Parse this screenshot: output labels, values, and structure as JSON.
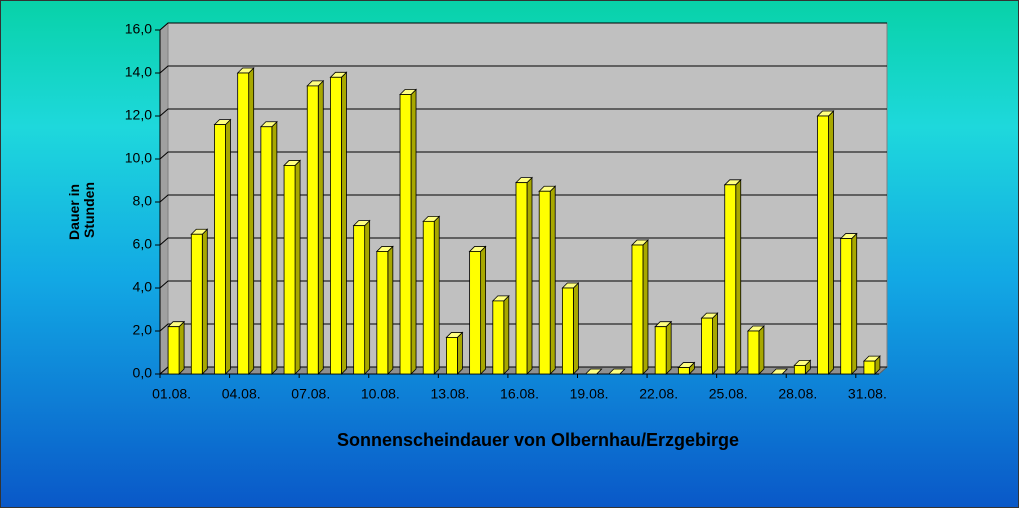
{
  "chart_data": {
    "type": "bar",
    "title": "Sonnenscheindauer von Olbernhau/Erzgebirge",
    "y_label_lines": [
      "Dauer in",
      "Stunden"
    ],
    "categories": [
      "01.08.",
      null,
      null,
      "04.08.",
      null,
      null,
      "07.08.",
      null,
      null,
      "10.08.",
      null,
      null,
      "13.08.",
      null,
      null,
      "16.08.",
      null,
      null,
      "19.08.",
      null,
      null,
      "22.08.",
      null,
      null,
      "25.08.",
      null,
      null,
      "28.08.",
      null,
      null,
      "31.08."
    ],
    "values": [
      2.2,
      6.5,
      11.6,
      14.0,
      11.5,
      9.7,
      13.4,
      13.8,
      6.9,
      5.7,
      13.0,
      7.1,
      1.7,
      5.7,
      3.4,
      8.9,
      8.5,
      4.0,
      0,
      0,
      6.0,
      2.2,
      0.3,
      2.6,
      8.8,
      2.0,
      0,
      0.4,
      12.0,
      6.3,
      0.6
    ],
    "color": "#ffff00",
    "ylim": [
      0,
      16
    ],
    "yticks": [
      {
        "value": 0,
        "label": "0,0"
      },
      {
        "value": 2,
        "label": "2,0"
      },
      {
        "value": 4,
        "label": "4,0"
      },
      {
        "value": 6,
        "label": "6,0"
      },
      {
        "value": 8,
        "label": "8,0"
      },
      {
        "value": 10,
        "label": "10,0"
      },
      {
        "value": 12,
        "label": "12,0"
      },
      {
        "value": 14,
        "label": "14,0"
      },
      {
        "value": 16,
        "label": "16,0"
      }
    ],
    "grid": true
  }
}
